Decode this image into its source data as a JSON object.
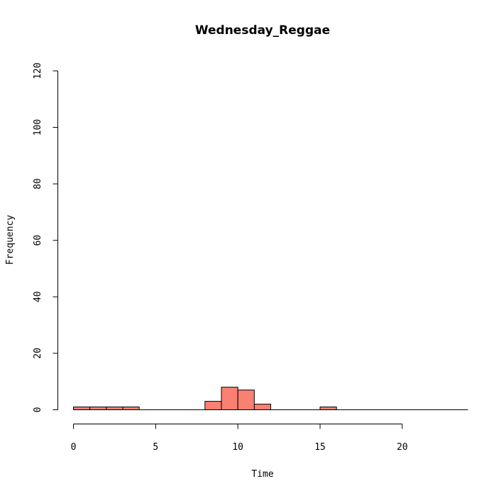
{
  "chart_data": {
    "type": "bar",
    "title": "Wednesday_Reggae",
    "xlabel": "Time",
    "ylabel": "Frequency",
    "bar_color": "#fa8072",
    "xlim": [
      0,
      24
    ],
    "ylim": [
      0,
      120
    ],
    "x_ticks": [
      0,
      5,
      10,
      15,
      20
    ],
    "y_ticks": [
      0,
      20,
      40,
      60,
      80,
      100,
      120
    ],
    "bins": [
      {
        "start": 0,
        "end": 1,
        "count": 1
      },
      {
        "start": 1,
        "end": 2,
        "count": 1
      },
      {
        "start": 2,
        "end": 3,
        "count": 1
      },
      {
        "start": 3,
        "end": 4,
        "count": 1
      },
      {
        "start": 4,
        "end": 5,
        "count": 0
      },
      {
        "start": 5,
        "end": 6,
        "count": 0
      },
      {
        "start": 6,
        "end": 7,
        "count": 0
      },
      {
        "start": 7,
        "end": 8,
        "count": 0
      },
      {
        "start": 8,
        "end": 9,
        "count": 3
      },
      {
        "start": 9,
        "end": 10,
        "count": 8
      },
      {
        "start": 10,
        "end": 11,
        "count": 7
      },
      {
        "start": 11,
        "end": 12,
        "count": 2
      },
      {
        "start": 12,
        "end": 13,
        "count": 0
      },
      {
        "start": 13,
        "end": 14,
        "count": 0
      },
      {
        "start": 14,
        "end": 15,
        "count": 0
      },
      {
        "start": 15,
        "end": 16,
        "count": 1
      },
      {
        "start": 16,
        "end": 17,
        "count": 0
      },
      {
        "start": 17,
        "end": 18,
        "count": 0
      },
      {
        "start": 18,
        "end": 19,
        "count": 0
      },
      {
        "start": 19,
        "end": 20,
        "count": 0
      },
      {
        "start": 20,
        "end": 21,
        "count": 0
      },
      {
        "start": 21,
        "end": 22,
        "count": 0
      },
      {
        "start": 22,
        "end": 23,
        "count": 0
      },
      {
        "start": 23,
        "end": 24,
        "count": 0
      }
    ]
  }
}
